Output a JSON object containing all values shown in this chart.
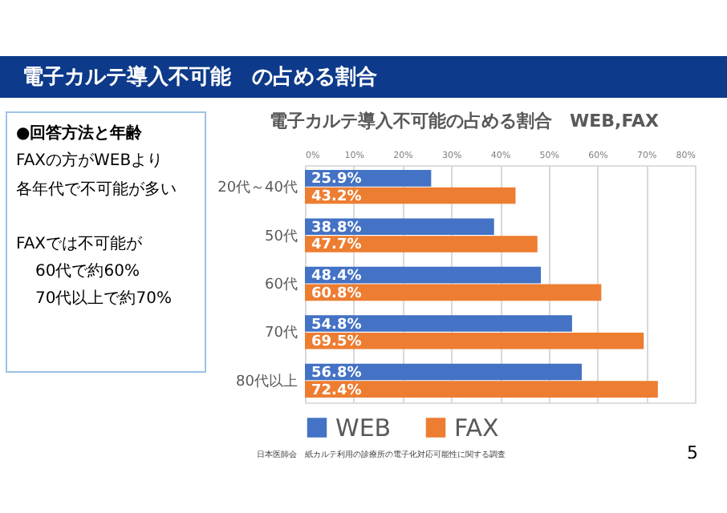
{
  "chart_data": {
    "type": "bar",
    "orientation": "horizontal",
    "title": "電子カルテ導入不可能の占める割合　WEB,FAX",
    "categories": [
      "20代～40代",
      "50代",
      "60代",
      "70代",
      "80代以上"
    ],
    "series": [
      {
        "name": "WEB",
        "color": "#4472c4",
        "values": [
          25.9,
          38.8,
          48.4,
          54.8,
          56.8
        ]
      },
      {
        "name": "FAX",
        "color": "#ed7d31",
        "values": [
          43.2,
          47.7,
          60.8,
          69.5,
          72.4
        ]
      }
    ],
    "xlim": [
      0,
      80
    ],
    "xticks": [
      {
        "value": 0,
        "label": "0%"
      },
      {
        "value": 10,
        "label": "10%"
      },
      {
        "value": 20,
        "label": "20%"
      },
      {
        "value": 30,
        "label": "30%"
      },
      {
        "value": 40,
        "label": "40%"
      },
      {
        "value": 50,
        "label": "50%"
      },
      {
        "value": 60,
        "label": "60%"
      },
      {
        "value": 70,
        "label": "70%"
      },
      {
        "value": 80,
        "label": "80%"
      }
    ],
    "value_labels": [
      "25.9%",
      "38.8%",
      "48.4%",
      "54.8%",
      "56.8%",
      "43.2%",
      "47.7%",
      "60.8%",
      "69.5%",
      "72.4%"
    ],
    "grid": "x",
    "legend": "bottom",
    "annotations": [
      "電子カルテ導入不可能　の占める割合",
      "●回答方法と年齢",
      "FAXの方がWEBより",
      "各年代で不可能が多い",
      "FAXでは不可能が",
      "60代で約60%",
      "70代以上で約70%",
      "日本医師会　紙カルテ利用の診療所の電子化対応可能性に関する調査",
      "5"
    ]
  }
}
